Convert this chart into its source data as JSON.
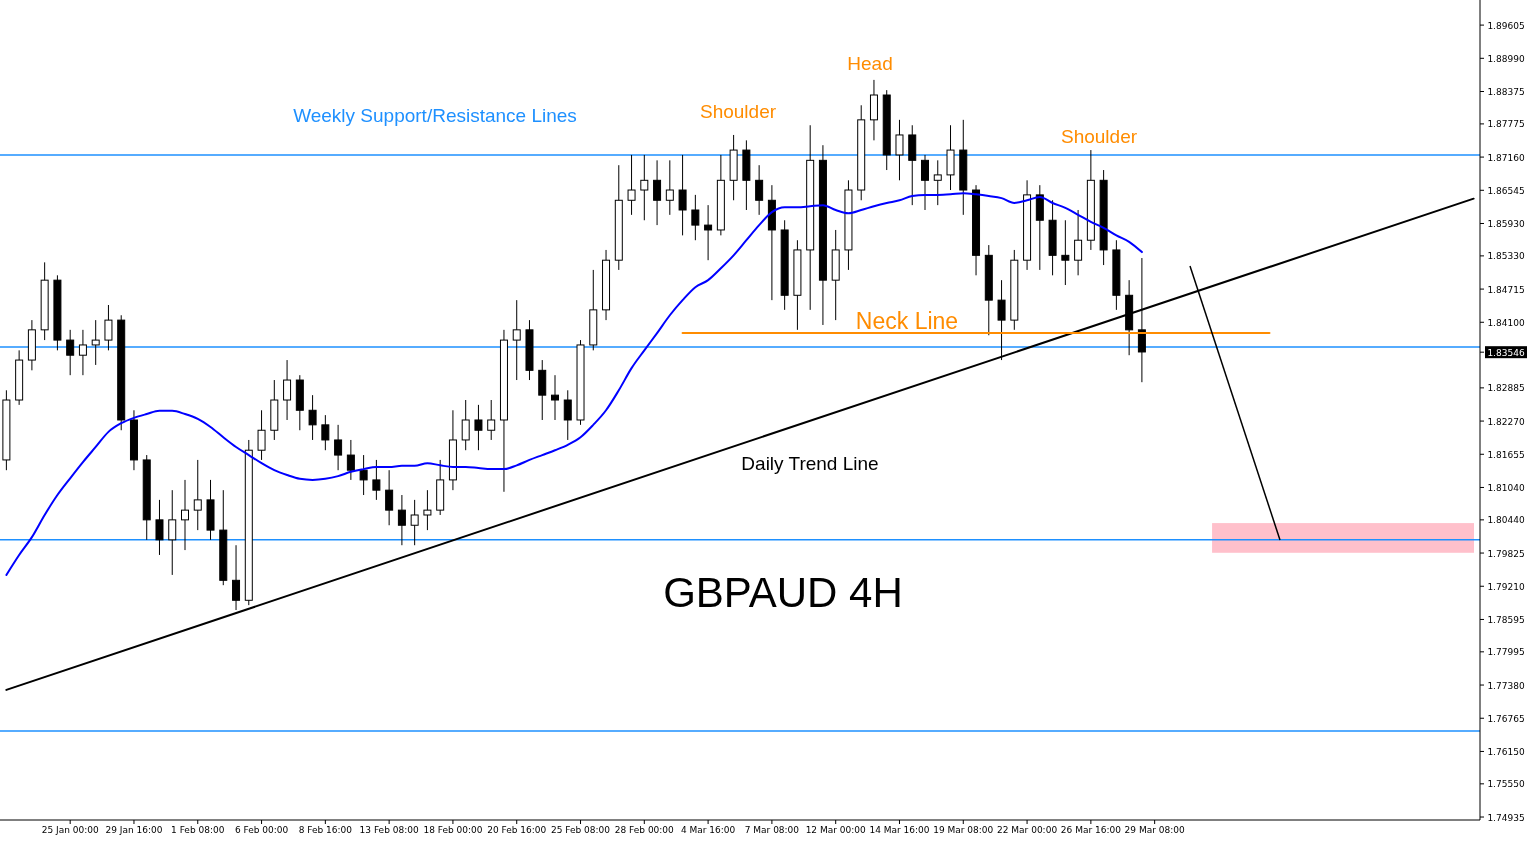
{
  "chart_data": {
    "type": "candlestick",
    "title": "GBPAUD 4H",
    "categories": [
      null,
      null,
      null,
      null,
      null,
      "25 Jan 00:00",
      null,
      null,
      null,
      null,
      "29 Jan 16:00",
      null,
      null,
      null,
      null,
      "1 Feb 08:00",
      null,
      null,
      null,
      null,
      "6 Feb 00:00",
      null,
      null,
      null,
      null,
      "8 Feb 16:00",
      null,
      null,
      null,
      null,
      "13 Feb 08:00",
      null,
      null,
      null,
      null,
      "18 Feb 00:00",
      null,
      null,
      null,
      null,
      "20 Feb 16:00",
      null,
      null,
      null,
      null,
      "25 Feb 08:00",
      null,
      null,
      null,
      null,
      "28 Feb 00:00",
      null,
      null,
      null,
      null,
      "4 Mar 16:00",
      null,
      null,
      null,
      null,
      "7 Mar 08:00",
      null,
      null,
      null,
      null,
      "12 Mar 00:00",
      null,
      null,
      null,
      null,
      "14 Mar 16:00",
      null,
      null,
      null,
      null,
      "19 Mar 08:00",
      null,
      null,
      null,
      null,
      "22 Mar 00:00",
      null,
      null,
      null,
      null,
      "26 Mar 16:00",
      null,
      null,
      null,
      null,
      "29 Mar 08:00",
      null,
      null,
      null,
      null,
      null,
      null,
      null,
      null,
      null,
      null,
      null,
      null,
      null,
      null,
      null,
      null,
      null,
      null,
      null,
      null,
      null,
      null,
      null,
      null,
      null
    ],
    "ohlc": [
      [
        1.8155,
        1.8284,
        1.8136,
        1.8266
      ],
      [
        1.8266,
        1.8358,
        1.8257,
        1.834
      ],
      [
        1.834,
        1.8414,
        1.8321,
        1.8396
      ],
      [
        1.8396,
        1.8521,
        1.8377,
        1.8488
      ],
      [
        1.8488,
        1.8497,
        1.8358,
        1.8377
      ],
      [
        1.8377,
        1.8396,
        1.8312,
        1.8349
      ],
      [
        1.8349,
        1.8396,
        1.8312,
        1.8368
      ],
      [
        1.8368,
        1.8414,
        1.8331,
        1.8377
      ],
      [
        1.8377,
        1.8442,
        1.8358,
        1.8414
      ],
      [
        1.8414,
        1.8423,
        1.821,
        1.8229
      ],
      [
        1.8229,
        1.8247,
        1.8136,
        1.8155
      ],
      [
        1.8155,
        1.8164,
        1.8007,
        1.8044
      ],
      [
        1.8044,
        1.8081,
        1.7979,
        1.8007
      ],
      [
        1.8007,
        1.8099,
        1.7942,
        1.8044
      ],
      [
        1.8044,
        1.8118,
        1.7988,
        1.8062
      ],
      [
        1.8062,
        1.8155,
        1.8025,
        1.8081
      ],
      [
        1.8081,
        1.8118,
        1.8007,
        1.8025
      ],
      [
        1.8025,
        1.8099,
        1.7923,
        1.7932
      ],
      [
        1.7932,
        1.7997,
        1.7877,
        1.7895
      ],
      [
        1.7895,
        1.8192,
        1.7886,
        1.8173
      ],
      [
        1.8173,
        1.8247,
        1.8155,
        1.821
      ],
      [
        1.821,
        1.8303,
        1.8192,
        1.8266
      ],
      [
        1.8266,
        1.834,
        1.8229,
        1.8303
      ],
      [
        1.8303,
        1.8312,
        1.821,
        1.8247
      ],
      [
        1.8247,
        1.8275,
        1.8192,
        1.822
      ],
      [
        1.822,
        1.8238,
        1.8173,
        1.8192
      ],
      [
        1.8192,
        1.822,
        1.8136,
        1.8164
      ],
      [
        1.8164,
        1.8192,
        1.8118,
        1.8136
      ],
      [
        1.8136,
        1.8164,
        1.809,
        1.8118
      ],
      [
        1.8118,
        1.8155,
        1.8081,
        1.8099
      ],
      [
        1.8099,
        1.8136,
        1.8034,
        1.8062
      ],
      [
        1.8062,
        1.809,
        1.7997,
        1.8034
      ],
      [
        1.8034,
        1.8081,
        1.7997,
        1.8053
      ],
      [
        1.8053,
        1.8099,
        1.8025,
        1.8062
      ],
      [
        1.8062,
        1.8155,
        1.8053,
        1.8118
      ],
      [
        1.8118,
        1.8247,
        1.8099,
        1.8192
      ],
      [
        1.8192,
        1.8266,
        1.8173,
        1.8229
      ],
      [
        1.8229,
        1.8257,
        1.8173,
        1.821
      ],
      [
        1.821,
        1.8266,
        1.8192,
        1.8229
      ],
      [
        1.8229,
        1.8396,
        1.8096,
        1.8377
      ],
      [
        1.8377,
        1.8451,
        1.8303,
        1.8396
      ],
      [
        1.8396,
        1.8414,
        1.8303,
        1.8321
      ],
      [
        1.8321,
        1.834,
        1.8229,
        1.8275
      ],
      [
        1.8275,
        1.8312,
        1.8229,
        1.8266
      ],
      [
        1.8266,
        1.8284,
        1.8192,
        1.8229
      ],
      [
        1.8229,
        1.8377,
        1.822,
        1.8368
      ],
      [
        1.8368,
        1.8507,
        1.8358,
        1.8433
      ],
      [
        1.8433,
        1.8544,
        1.8414,
        1.8525
      ],
      [
        1.8525,
        1.8701,
        1.8507,
        1.8636
      ],
      [
        1.8636,
        1.872,
        1.8609,
        1.8655
      ],
      [
        1.8655,
        1.872,
        1.8599,
        1.8673
      ],
      [
        1.8673,
        1.871,
        1.859,
        1.8636
      ],
      [
        1.8636,
        1.871,
        1.8609,
        1.8655
      ],
      [
        1.8655,
        1.872,
        1.8571,
        1.8618
      ],
      [
        1.8618,
        1.8646,
        1.8562,
        1.859
      ],
      [
        1.859,
        1.8627,
        1.8525,
        1.8581
      ],
      [
        1.8581,
        1.872,
        1.8571,
        1.8673
      ],
      [
        1.8673,
        1.8757,
        1.8636,
        1.8729
      ],
      [
        1.8729,
        1.8747,
        1.8618,
        1.8673
      ],
      [
        1.8673,
        1.8701,
        1.8609,
        1.8636
      ],
      [
        1.8636,
        1.8664,
        1.8451,
        1.8581
      ],
      [
        1.8581,
        1.8599,
        1.8433,
        1.846
      ],
      [
        1.846,
        1.8562,
        1.8396,
        1.8544
      ],
      [
        1.8544,
        1.8775,
        1.8433,
        1.871
      ],
      [
        1.871,
        1.8738,
        1.8405,
        1.8488
      ],
      [
        1.8488,
        1.8581,
        1.8414,
        1.8544
      ],
      [
        1.8544,
        1.8673,
        1.8507,
        1.8655
      ],
      [
        1.8655,
        1.8812,
        1.8636,
        1.8785
      ],
      [
        1.8785,
        1.8859,
        1.8747,
        1.8831
      ],
      [
        1.8831,
        1.884,
        1.8692,
        1.872
      ],
      [
        1.872,
        1.8785,
        1.8673,
        1.8757
      ],
      [
        1.8757,
        1.8775,
        1.8627,
        1.871
      ],
      [
        1.871,
        1.872,
        1.8618,
        1.8673
      ],
      [
        1.8673,
        1.871,
        1.8627,
        1.8683
      ],
      [
        1.8683,
        1.8775,
        1.8655,
        1.8729
      ],
      [
        1.8729,
        1.8785,
        1.8609,
        1.8655
      ],
      [
        1.8655,
        1.8664,
        1.8497,
        1.8534
      ],
      [
        1.8534,
        1.8553,
        1.8386,
        1.8451
      ],
      [
        1.8451,
        1.8488,
        1.834,
        1.8414
      ],
      [
        1.8414,
        1.8544,
        1.8396,
        1.8525
      ],
      [
        1.8525,
        1.8673,
        1.8507,
        1.8646
      ],
      [
        1.8646,
        1.8664,
        1.8507,
        1.8599
      ],
      [
        1.8599,
        1.8636,
        1.8497,
        1.8534
      ],
      [
        1.8534,
        1.8599,
        1.8479,
        1.8525
      ],
      [
        1.8525,
        1.8618,
        1.8497,
        1.8562
      ],
      [
        1.8562,
        1.8729,
        1.8544,
        1.8673
      ],
      [
        1.8673,
        1.8692,
        1.8516,
        1.8544
      ],
      [
        1.8544,
        1.8562,
        1.8433,
        1.846
      ],
      [
        1.846,
        1.8488,
        1.8349,
        1.8396
      ],
      [
        1.8396,
        1.8529,
        1.8299,
        1.8355
      ],
      null,
      null,
      null,
      null,
      null,
      null,
      null,
      null,
      null,
      null,
      null,
      null,
      null,
      null,
      null,
      null,
      null,
      null,
      null,
      null,
      null,
      null,
      null,
      null,
      null,
      null
    ],
    "series": [
      {
        "type": "line",
        "color": "#0000ff",
        "values": [
          1.7942,
          1.7979,
          1.8012,
          1.8053,
          1.809,
          1.8121,
          1.8151,
          1.8179,
          1.8207,
          1.8223,
          1.8233,
          1.824,
          1.8246,
          1.8246,
          1.824,
          1.8231,
          1.8216,
          1.8197,
          1.8179,
          1.8164,
          1.8149,
          1.8136,
          1.8127,
          1.812,
          1.8118,
          1.812,
          1.8125,
          1.8133,
          1.8138,
          1.8142,
          1.8142,
          1.8144,
          1.8144,
          1.8149,
          1.8145,
          1.8142,
          1.8142,
          1.814,
          1.8138,
          1.8138,
          1.8145,
          1.8155,
          1.8164,
          1.8173,
          1.8183,
          1.8197,
          1.822,
          1.8247,
          1.8284,
          1.8325,
          1.8358,
          1.839,
          1.8423,
          1.8451,
          1.8475,
          1.8488,
          1.851,
          1.8534,
          1.8562,
          1.859,
          1.8614,
          1.8623,
          1.8623,
          1.8625,
          1.8627,
          1.8618,
          1.8612,
          1.8618,
          1.8625,
          1.8631,
          1.8636,
          1.8644,
          1.8646,
          1.8646,
          1.8647,
          1.8649,
          1.8647,
          1.8644,
          1.864,
          1.8631,
          1.8636,
          1.8642,
          1.8631,
          1.8622,
          1.8609,
          1.8596,
          1.8585,
          1.8571,
          1.8559,
          1.854,
          null,
          null,
          null,
          null,
          null,
          null,
          null,
          null,
          null,
          null,
          null,
          null,
          null,
          null,
          null,
          null,
          null,
          null,
          null,
          null,
          null,
          null,
          null,
          null,
          null,
          null
        ]
      },
      {
        "type": "line",
        "color": "#000000",
        "values": [
          1.7729,
          null,
          null,
          null,
          null,
          null,
          null,
          null,
          null,
          null,
          null,
          null,
          null,
          null,
          null,
          null,
          null,
          null,
          null,
          null,
          null,
          null,
          null,
          null,
          null,
          null,
          null,
          null,
          null,
          null,
          null,
          null,
          null,
          null,
          null,
          null,
          null,
          null,
          null,
          null,
          null,
          null,
          null,
          null,
          null,
          null,
          null,
          null,
          null,
          null,
          null,
          null,
          null,
          null,
          null,
          null,
          null,
          null,
          null,
          null,
          null,
          null,
          null,
          null,
          null,
          null,
          null,
          null,
          null,
          null,
          null,
          null,
          null,
          null,
          null,
          null,
          null,
          null,
          null,
          null,
          null,
          null,
          null,
          null,
          null,
          null,
          null,
          null,
          null,
          null,
          null,
          null,
          null,
          null,
          null,
          null,
          null,
          null,
          null,
          null,
          null,
          null,
          null,
          null,
          null,
          null,
          null,
          null,
          null,
          null,
          null,
          null,
          null,
          null,
          null,
          1.8639
        ]
      },
      {
        "type": "line",
        "color": "#ff8c00",
        "values": [
          null,
          null,
          null,
          null,
          null,
          null,
          null,
          null,
          null,
          null,
          null,
          null,
          null,
          null,
          null,
          null,
          null,
          null,
          null,
          null,
          null,
          null,
          null,
          null,
          null,
          null,
          null,
          null,
          null,
          null,
          null,
          null,
          null,
          null,
          null,
          null,
          null,
          null,
          null,
          null,
          null,
          null,
          null,
          null,
          null,
          null,
          null,
          null,
          null,
          null,
          null,
          null,
          null,
          1.839,
          null,
          null,
          null,
          null,
          null,
          null,
          null,
          null,
          null,
          null,
          null,
          null,
          null,
          null,
          null,
          null,
          null,
          null,
          null,
          null,
          null,
          null,
          null,
          null,
          null,
          null,
          null,
          null,
          null,
          null,
          null,
          null,
          null,
          null,
          null,
          null,
          null,
          null,
          null,
          null,
          null,
          null,
          null,
          null,
          null,
          1.839,
          null,
          null,
          null,
          null,
          null,
          null,
          null,
          null,
          null,
          null,
          null,
          null,
          null,
          null,
          null,
          null
        ]
      }
    ],
    "ylim": [
      1.7488,
      1.9007
    ],
    "yticks": [
      1.89605,
      {
        "value": 1.8899,
        "label": "1.88990"
      },
      1.88375,
      1.87775,
      {
        "value": 1.8716,
        "label": "1.87160"
      },
      1.86545,
      {
        "value": 1.8593,
        "label": "1.85930"
      },
      {
        "value": 1.8533,
        "label": "1.85330"
      },
      1.84715,
      {
        "value": 1.841,
        "label": "1.84100"
      },
      {
        "value": 1.83546,
        "label": "1.83546"
      },
      1.82885,
      {
        "value": 1.8227,
        "label": "1.82270"
      },
      1.81655,
      {
        "value": 1.8104,
        "label": "1.81040"
      },
      {
        "value": 1.8044,
        "label": "1.80440"
      },
      1.79825,
      {
        "value": 1.7921,
        "label": "1.79210"
      },
      1.78595,
      1.77995,
      {
        "value": 1.7738,
        "label": "1.77380"
      },
      1.76765,
      {
        "value": 1.7615,
        "label": "1.76150"
      },
      {
        "value": 1.7555,
        "label": "1.75550"
      },
      1.74935
    ],
    "ref_lines": [
      {
        "axis": "y",
        "value": 1.872,
        "color": "#1e90ff"
      },
      {
        "axis": "y",
        "value": 1.8364,
        "color": "#1e90ff"
      },
      {
        "axis": "y",
        "value": 1.8007,
        "color": "#1e90ff"
      },
      {
        "axis": "y",
        "value": 1.7653,
        "color": "#1e90ff"
      }
    ],
    "bands": [
      {
        "axis": "y",
        "from": 1.7983,
        "to": 1.8038,
        "color": "#ffc0cb"
      }
    ],
    "annotations": [
      "Weekly Support/Resistance Lines",
      "Head",
      "Shoulder",
      "Shoulder",
      "Neck Line",
      "Daily Trend Line"
    ],
    "grid": false
  }
}
